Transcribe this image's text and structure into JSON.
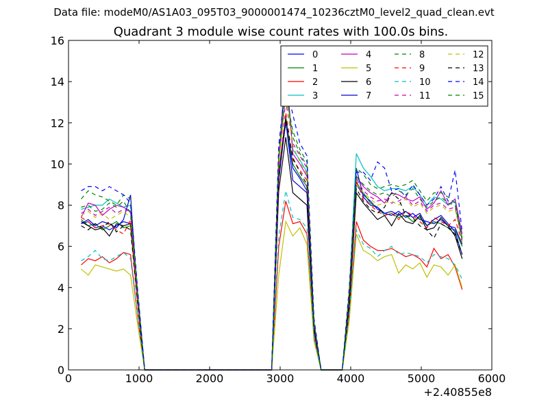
{
  "page": {
    "data_file_text": "Data file: modeM0/AS1A03_095T03_9000001474_10236cztM0_level2_quad_clean.evt"
  },
  "chart_data": {
    "type": "line",
    "title": "Quadrant 3 module wise count rates with 100.0s bins.",
    "xlabel": "",
    "ylabel": "",
    "x_offset_text": "+2.40855e8",
    "xlim": [
      0,
      6000
    ],
    "ylim": [
      0,
      16
    ],
    "xticks": [
      0,
      1000,
      2000,
      3000,
      4000,
      5000,
      6000
    ],
    "yticks": [
      0,
      2,
      4,
      6,
      8,
      10,
      12,
      14,
      16
    ],
    "legend_position": "top-right",
    "legend_columns": 4,
    "grid": false,
    "x": [
      180,
      280,
      380,
      480,
      580,
      680,
      780,
      880,
      980,
      1080,
      1180,
      1280,
      1380,
      1480,
      1580,
      1680,
      1780,
      1880,
      1980,
      2080,
      2180,
      2280,
      2380,
      2480,
      2580,
      2680,
      2780,
      2880,
      2980,
      3080,
      3180,
      3280,
      3380,
      3480,
      3580,
      3680,
      3780,
      3880,
      3980,
      4080,
      4180,
      4280,
      4380,
      4480,
      4580,
      4680,
      4780,
      4880,
      4980,
      5080,
      5180,
      5280,
      5380,
      5480,
      5580
    ],
    "series": [
      {
        "name": "0",
        "color": "#0000ff",
        "dash": "solid",
        "values": [
          7.1,
          7.2,
          6.9,
          7.0,
          6.8,
          7.0,
          7.2,
          7.1,
          3.4,
          0,
          0,
          0,
          0,
          0,
          0,
          0,
          0,
          0,
          0,
          0,
          0,
          0,
          0,
          0,
          0,
          0,
          0,
          0,
          9.5,
          12.0,
          9.8,
          9.3,
          8.7,
          2.1,
          0,
          0,
          0,
          0,
          3.4,
          9.0,
          8.5,
          8.2,
          7.8,
          7.6,
          7.5,
          7.7,
          7.4,
          7.6,
          7.3,
          7.2,
          7.1,
          7.3,
          7.0,
          6.9,
          6.1
        ]
      },
      {
        "name": "1",
        "color": "#008000",
        "dash": "solid",
        "values": [
          7.3,
          7.0,
          7.1,
          6.8,
          7.0,
          7.2,
          6.9,
          7.0,
          3.3,
          0,
          0,
          0,
          0,
          0,
          0,
          0,
          0,
          0,
          0,
          0,
          0,
          0,
          0,
          0,
          0,
          0,
          0,
          0,
          9.6,
          12.3,
          10.0,
          9.4,
          8.9,
          2.0,
          0,
          0,
          0,
          0,
          3.5,
          9.1,
          8.6,
          8.1,
          7.9,
          7.5,
          7.6,
          7.4,
          7.5,
          7.2,
          7.4,
          7.0,
          7.2,
          7.1,
          6.9,
          6.8,
          6.0
        ]
      },
      {
        "name": "2",
        "color": "#ff0000",
        "dash": "solid",
        "values": [
          5.1,
          5.4,
          5.3,
          5.5,
          5.2,
          5.4,
          5.7,
          5.6,
          2.6,
          0,
          0,
          0,
          0,
          0,
          0,
          0,
          0,
          0,
          0,
          0,
          0,
          0,
          0,
          0,
          0,
          0,
          0,
          0,
          6.0,
          8.2,
          7.1,
          7.2,
          6.6,
          1.6,
          0,
          0,
          0,
          0,
          2.7,
          7.2,
          6.3,
          6.0,
          5.8,
          5.8,
          5.9,
          5.7,
          5.5,
          5.6,
          5.4,
          5.0,
          5.9,
          5.4,
          5.6,
          5.0,
          3.9
        ]
      },
      {
        "name": "3",
        "color": "#00bfbf",
        "dash": "solid",
        "values": [
          7.8,
          7.9,
          8.0,
          8.0,
          8.3,
          8.1,
          7.9,
          8.0,
          3.8,
          0,
          0,
          0,
          0,
          0,
          0,
          0,
          0,
          0,
          0,
          0,
          0,
          0,
          0,
          0,
          0,
          0,
          0,
          0,
          10.0,
          14.3,
          10.7,
          10.2,
          9.6,
          2.3,
          0,
          0,
          0,
          0,
          3.8,
          10.5,
          9.8,
          9.4,
          8.9,
          8.7,
          8.8,
          8.8,
          8.7,
          8.9,
          8.5,
          8.0,
          8.4,
          8.3,
          8.0,
          8.2,
          6.4
        ]
      },
      {
        "name": "4",
        "color": "#bf00bf",
        "dash": "solid",
        "values": [
          7.4,
          8.1,
          8.0,
          7.5,
          7.8,
          8.0,
          7.9,
          7.7,
          3.7,
          0,
          0,
          0,
          0,
          0,
          0,
          0,
          0,
          0,
          0,
          0,
          0,
          0,
          0,
          0,
          0,
          0,
          0,
          0,
          10.1,
          15.0,
          10.5,
          10.0,
          9.4,
          2.2,
          0,
          0,
          0,
          0,
          3.7,
          9.4,
          8.9,
          8.6,
          8.4,
          8.1,
          8.6,
          8.5,
          8.3,
          8.2,
          8.4,
          7.8,
          8.1,
          8.7,
          8.0,
          8.3,
          6.6
        ]
      },
      {
        "name": "5",
        "color": "#bfbf00",
        "dash": "solid",
        "values": [
          4.9,
          4.6,
          5.1,
          5.0,
          4.9,
          4.8,
          4.9,
          4.6,
          2.2,
          0,
          0,
          0,
          0,
          0,
          0,
          0,
          0,
          0,
          0,
          0,
          0,
          0,
          0,
          0,
          0,
          0,
          0,
          0,
          4.6,
          7.2,
          6.5,
          6.9,
          6.1,
          1.4,
          0,
          0,
          0,
          0,
          2.4,
          6.6,
          5.8,
          5.6,
          5.3,
          5.5,
          5.6,
          4.7,
          5.1,
          4.9,
          5.2,
          4.5,
          5.1,
          5.0,
          4.6,
          5.1,
          4.0
        ]
      },
      {
        "name": "6",
        "color": "#000000",
        "dash": "solid",
        "values": [
          7.2,
          7.0,
          6.8,
          6.9,
          6.5,
          7.1,
          7.0,
          7.1,
          3.3,
          0,
          0,
          0,
          0,
          0,
          0,
          0,
          0,
          0,
          0,
          0,
          0,
          0,
          0,
          0,
          0,
          0,
          0,
          0,
          8.7,
          11.3,
          8.6,
          8.3,
          8.0,
          1.9,
          0,
          0,
          0,
          0,
          3.1,
          8.6,
          8.1,
          7.7,
          7.3,
          7.5,
          7.0,
          7.6,
          7.2,
          7.1,
          7.5,
          6.8,
          6.9,
          7.4,
          7.0,
          6.5,
          5.4
        ]
      },
      {
        "name": "7",
        "color": "#0000cc",
        "dash": "solid",
        "values": [
          7.1,
          7.3,
          7.0,
          7.2,
          7.1,
          6.9,
          7.3,
          8.5,
          3.3,
          0,
          0,
          0,
          0,
          0,
          0,
          0,
          0,
          0,
          0,
          0,
          0,
          0,
          0,
          0,
          0,
          0,
          0,
          0,
          9.2,
          12.1,
          9.2,
          8.9,
          8.6,
          2.0,
          0,
          0,
          0,
          0,
          3.3,
          9.8,
          8.4,
          8.0,
          7.9,
          7.6,
          7.7,
          7.5,
          7.7,
          7.4,
          7.6,
          7.0,
          7.3,
          7.5,
          7.1,
          6.7,
          5.6
        ]
      },
      {
        "name": "8",
        "color": "#008000",
        "dash": "dashed",
        "values": [
          8.3,
          8.7,
          8.5,
          8.4,
          8.2,
          8.0,
          8.5,
          8.3,
          3.9,
          0,
          0,
          0,
          0,
          0,
          0,
          0,
          0,
          0,
          0,
          0,
          0,
          0,
          0,
          0,
          0,
          0,
          0,
          0,
          10.8,
          13.4,
          11.6,
          10.7,
          10.1,
          2.4,
          0,
          0,
          0,
          0,
          4.0,
          9.8,
          9.5,
          9.0,
          8.8,
          8.9,
          9.0,
          8.9,
          9.0,
          9.2,
          8.7,
          8.2,
          8.6,
          8.6,
          8.4,
          8.1,
          6.4
        ]
      },
      {
        "name": "9",
        "color": "#ff0000",
        "dash": "dashed",
        "values": [
          7.4,
          7.2,
          6.9,
          7.0,
          7.1,
          6.8,
          6.6,
          7.3,
          3.3,
          0,
          0,
          0,
          0,
          0,
          0,
          0,
          0,
          0,
          0,
          0,
          0,
          0,
          0,
          0,
          0,
          0,
          0,
          0,
          9.6,
          12.5,
          10.2,
          9.7,
          9.2,
          2.1,
          0,
          0,
          0,
          0,
          3.5,
          9.2,
          8.3,
          8.0,
          7.7,
          7.5,
          7.6,
          7.3,
          7.7,
          7.5,
          7.2,
          6.9,
          7.4,
          7.2,
          7.0,
          7.3,
          6.2
        ]
      },
      {
        "name": "10",
        "color": "#00bfbf",
        "dash": "dashed",
        "values": [
          5.3,
          5.5,
          5.8,
          5.4,
          5.3,
          5.5,
          5.7,
          5.4,
          2.6,
          0,
          0,
          0,
          0,
          0,
          0,
          0,
          0,
          0,
          0,
          0,
          0,
          0,
          0,
          0,
          0,
          0,
          0,
          0,
          6.5,
          8.7,
          7.4,
          7.3,
          6.9,
          1.6,
          0,
          0,
          0,
          0,
          2.8,
          6.8,
          6.1,
          5.9,
          5.5,
          5.8,
          6.0,
          5.6,
          5.7,
          5.6,
          5.5,
          5.2,
          5.6,
          5.5,
          5.4,
          5.1,
          4.4
        ]
      },
      {
        "name": "11",
        "color": "#bf00bf",
        "dash": "dashed",
        "values": [
          7.6,
          7.8,
          7.5,
          7.7,
          7.9,
          7.6,
          7.8,
          7.7,
          3.6,
          0,
          0,
          0,
          0,
          0,
          0,
          0,
          0,
          0,
          0,
          0,
          0,
          0,
          0,
          0,
          0,
          0,
          0,
          0,
          10.3,
          13.0,
          11.0,
          10.4,
          9.8,
          2.3,
          0,
          0,
          0,
          0,
          3.7,
          9.3,
          8.7,
          8.4,
          8.2,
          8.3,
          8.1,
          8.2,
          8.4,
          8.0,
          8.2,
          7.7,
          8.0,
          8.1,
          7.8,
          7.9,
          6.3
        ]
      },
      {
        "name": "12",
        "color": "#bfbf00",
        "dash": "dashed",
        "values": [
          7.5,
          7.7,
          7.4,
          7.6,
          7.3,
          7.5,
          7.7,
          7.4,
          3.5,
          0,
          0,
          0,
          0,
          0,
          0,
          0,
          0,
          0,
          0,
          0,
          0,
          0,
          0,
          0,
          0,
          0,
          0,
          0,
          10.0,
          13.3,
          10.9,
          10.1,
          9.5,
          2.2,
          0,
          0,
          0,
          0,
          3.6,
          9.0,
          8.6,
          8.3,
          8.0,
          8.1,
          8.2,
          8.0,
          8.3,
          7.9,
          8.1,
          7.6,
          7.9,
          8.0,
          7.7,
          7.8,
          6.2
        ]
      },
      {
        "name": "13",
        "color": "#000000",
        "dash": "dashed",
        "values": [
          7.0,
          6.8,
          7.1,
          6.9,
          7.2,
          6.7,
          7.0,
          6.8,
          3.2,
          0,
          0,
          0,
          0,
          0,
          0,
          0,
          0,
          0,
          0,
          0,
          0,
          0,
          0,
          0,
          0,
          0,
          0,
          0,
          9.4,
          12.2,
          10.3,
          9.6,
          9.0,
          2.1,
          0,
          0,
          0,
          0,
          3.3,
          8.8,
          8.2,
          7.8,
          7.6,
          7.9,
          8.6,
          8.3,
          7.5,
          7.4,
          7.0,
          6.8,
          6.4,
          7.1,
          6.9,
          6.6,
          5.6
        ]
      },
      {
        "name": "14",
        "color": "#0000ff",
        "dash": "dashed",
        "values": [
          8.7,
          8.9,
          8.9,
          8.7,
          8.9,
          8.7,
          8.5,
          8.1,
          3.9,
          0,
          0,
          0,
          0,
          0,
          0,
          0,
          0,
          0,
          0,
          0,
          0,
          0,
          0,
          0,
          0,
          0,
          0,
          0,
          10.9,
          14.0,
          12.4,
          11.0,
          10.4,
          2.5,
          0,
          0,
          0,
          0,
          4.0,
          9.6,
          9.6,
          9.2,
          10.1,
          9.8,
          8.7,
          8.8,
          8.4,
          9.0,
          8.5,
          8.0,
          8.3,
          8.9,
          8.2,
          9.7,
          6.7
        ]
      },
      {
        "name": "15",
        "color": "#008000",
        "dash": "dashed",
        "values": [
          7.9,
          8.0,
          7.7,
          7.8,
          8.1,
          7.9,
          8.2,
          7.6,
          3.7,
          0,
          0,
          0,
          0,
          0,
          0,
          0,
          0,
          0,
          0,
          0,
          0,
          0,
          0,
          0,
          0,
          0,
          0,
          0,
          10.4,
          13.6,
          11.3,
          10.5,
          9.9,
          2.3,
          0,
          0,
          0,
          0,
          3.8,
          9.4,
          9.0,
          8.7,
          8.5,
          8.6,
          8.4,
          8.7,
          8.5,
          8.8,
          8.3,
          7.9,
          8.2,
          8.4,
          8.1,
          8.0,
          6.3
        ]
      }
    ]
  }
}
